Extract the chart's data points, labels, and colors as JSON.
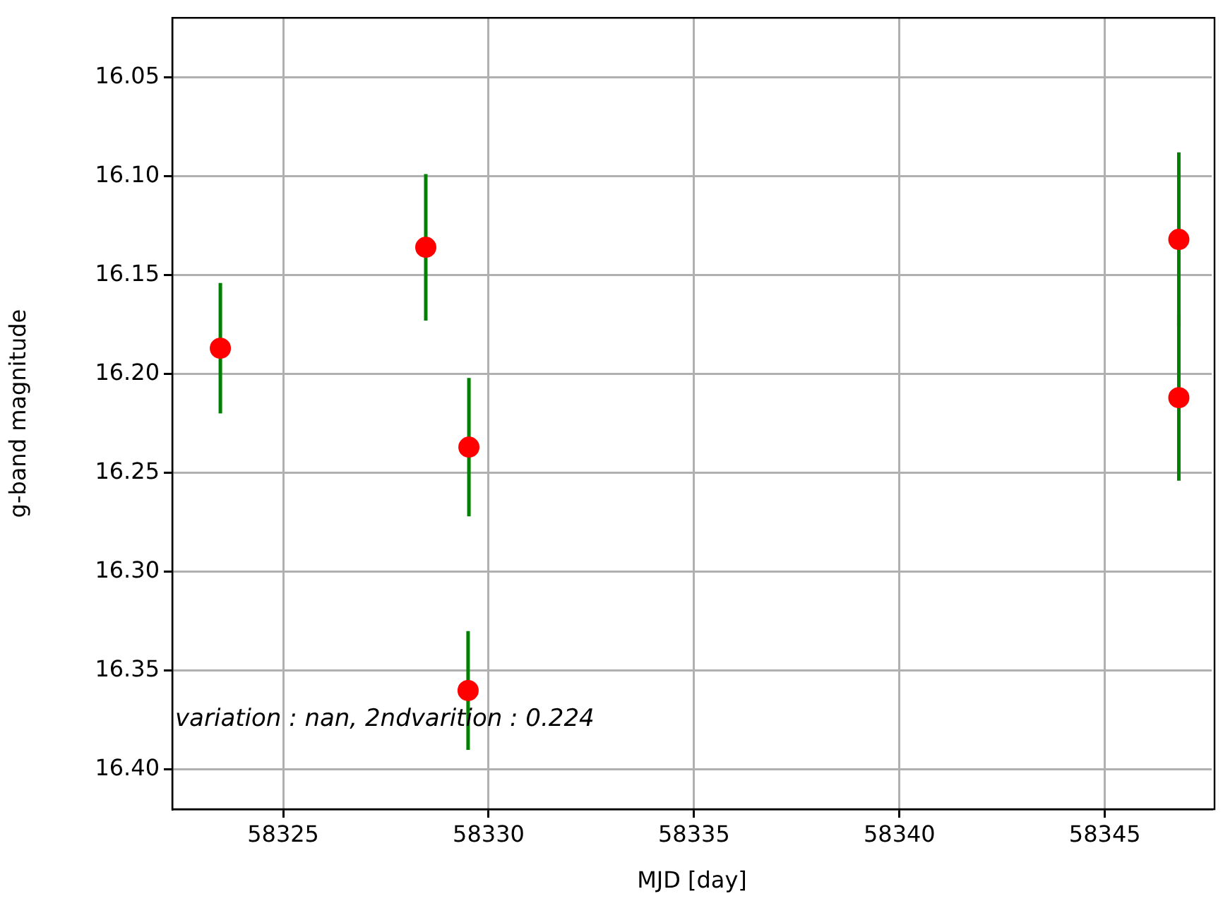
{
  "chart_data": {
    "type": "scatter",
    "xlabel": "MJD [day]",
    "ylabel": "g-band magnitude",
    "x": [
      58323.47,
      58328.47,
      58329.52,
      58329.5,
      58346.8,
      58346.8
    ],
    "series": [
      {
        "color": "#ff0000",
        "values": [
          16.187,
          16.136,
          16.237,
          16.36,
          16.132,
          16.212
        ],
        "errors": [
          0.033,
          0.037,
          0.035,
          0.03,
          0.044,
          0.042
        ]
      }
    ],
    "xlim": [
      58322.3,
      58347.6
    ],
    "xticks": [
      58325,
      58330,
      58335,
      58340,
      58345
    ],
    "ylim": [
      16.42,
      16.02
    ],
    "yticks": [
      {
        "value": 16.05,
        "label": "16.05"
      },
      {
        "value": 16.1,
        "label": "16.10"
      },
      {
        "value": 16.15,
        "label": "16.15"
      },
      {
        "value": 16.2,
        "label": "16.20"
      },
      {
        "value": 16.25,
        "label": "16.25"
      },
      {
        "value": 16.3,
        "label": "16.30"
      },
      {
        "value": 16.35,
        "label": "16.35"
      },
      {
        "value": 16.4,
        "label": "16.40"
      }
    ],
    "grid": true,
    "marker": "circle",
    "annotations": [
      "variation : nan, 2ndvarition : 0.224"
    ]
  }
}
